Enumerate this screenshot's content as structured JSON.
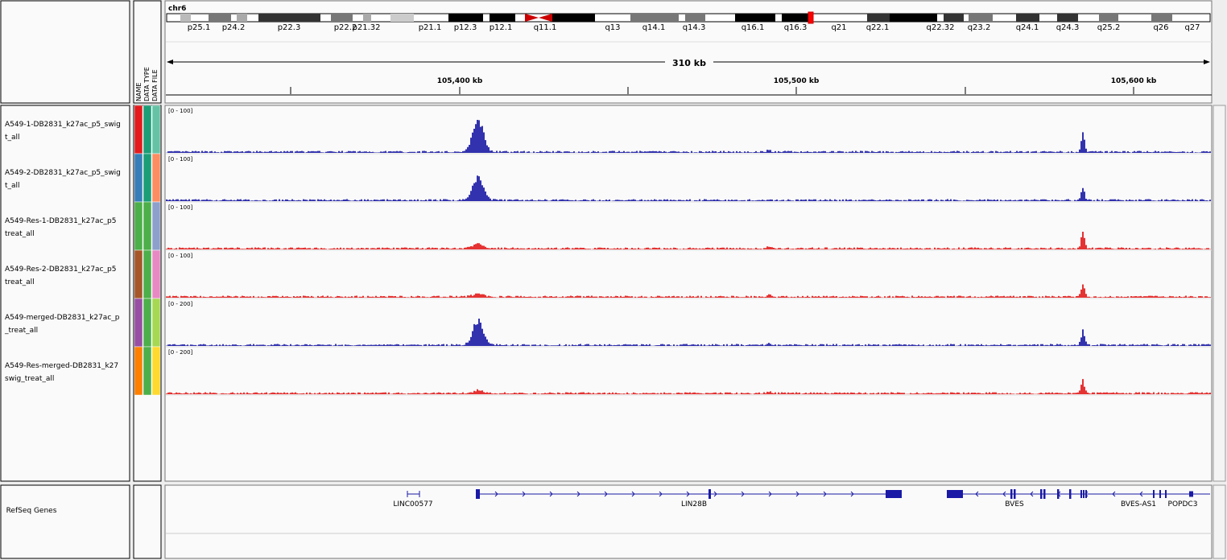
{
  "header": {
    "chromosome": "chr6",
    "bands": [
      "p25.1",
      "p24.2",
      "p22.3",
      "p22.2",
      "p21.32",
      "p21.1",
      "p12.3",
      "p12.1",
      "q11.1",
      "q13",
      "q14.1",
      "q14.3",
      "q16.1",
      "q16.3",
      "q21",
      "q22.1",
      "q22.32",
      "q23.2",
      "q24.1",
      "q24.3",
      "q25.2",
      "q26",
      "q27"
    ],
    "span": "310 kb",
    "ruler_ticks": [
      "105,400 kb",
      "105,500 kb",
      "105,600 kb"
    ]
  },
  "attribute_headers": [
    "NAME",
    "DATA TYPE",
    "DATA FILE"
  ],
  "tracks": [
    {
      "name_lines": [
        "A549-1-DB2831_k27ac_p5_swig",
        "t_all"
      ],
      "range": "[0 - 100]"
    },
    {
      "name_lines": [
        "A549-2-DB2831_k27ac_p5_swig",
        "t_all"
      ],
      "range": "[0 - 100]"
    },
    {
      "name_lines": [
        "A549-Res-1-DB2831_k27ac_p5",
        "treat_all"
      ],
      "range": "[0 - 100]"
    },
    {
      "name_lines": [
        "A549-Res-2-DB2831_k27ac_p5",
        "treat_all"
      ],
      "range": "[0 - 100]"
    },
    {
      "name_lines": [
        "A549-merged-DB2831_k27ac_p",
        "_treat_all"
      ],
      "range": "[0 - 200]"
    },
    {
      "name_lines": [
        "A549-Res-merged-DB2831_k27",
        "swig_treat_all"
      ],
      "range": "[0 - 200]"
    }
  ],
  "gene_track": {
    "name": "RefSeq Genes",
    "genes": [
      "LINC00577",
      "LIN28B",
      "BVES",
      "BVES-AS1",
      "POPDC3"
    ]
  }
}
